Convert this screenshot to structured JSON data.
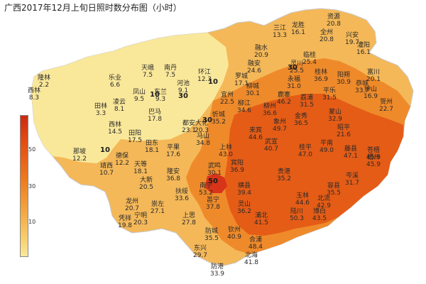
{
  "title": "广西2017年12月上旬日照时数分布图（小时）",
  "legend": {
    "unit": "",
    "ticks": [
      "50",
      "30",
      "10"
    ]
  },
  "colors": {
    "c1": "#fae89a",
    "c2": "#f7d070",
    "c3": "#f4b858",
    "c4": "#ef8a2a",
    "c5": "#e55c16",
    "c6": "#d8341a"
  },
  "contours": [
    "10",
    "10",
    "10",
    "30",
    "30",
    "30",
    "50"
  ],
  "stations": [
    {
      "name": "隆林",
      "value": "2.2"
    },
    {
      "name": "西林",
      "value": "8.3"
    },
    {
      "name": "乐业",
      "value": "6.6"
    },
    {
      "name": "天峨",
      "value": "7.5"
    },
    {
      "name": "南丹",
      "value": "7.5"
    },
    {
      "name": "环江",
      "value": "12.3"
    },
    {
      "name": "河池",
      "value": "9.1"
    },
    {
      "name": "凤山",
      "value": "9.5"
    },
    {
      "name": "东兰",
      "value": "9.3"
    },
    {
      "name": "凌云",
      "value": "8.1"
    },
    {
      "name": "田林",
      "value": "3.3"
    },
    {
      "name": "巴马",
      "value": "17.8"
    },
    {
      "name": "西林",
      "value": "14.5"
    },
    {
      "name": "田阳",
      "value": "17.5"
    },
    {
      "name": "田东",
      "value": "18.1"
    },
    {
      "name": "平果",
      "value": "17.6"
    },
    {
      "name": "德保",
      "value": "12.2"
    },
    {
      "name": "那坡",
      "value": "12.2"
    },
    {
      "name": "靖西",
      "value": "10.7"
    },
    {
      "name": "天等",
      "value": "18.1"
    },
    {
      "name": "大新",
      "value": "20.5"
    },
    {
      "name": "龙州",
      "value": "20.7"
    },
    {
      "name": "崇左",
      "value": "27.1"
    },
    {
      "name": "宁明",
      "value": "20.3"
    },
    {
      "name": "凭祥",
      "value": "19.8"
    },
    {
      "name": "隆安",
      "value": "36.8"
    },
    {
      "name": "扶绥",
      "value": "33.6"
    },
    {
      "name": "南宁",
      "value": "53.2"
    },
    {
      "name": "上思",
      "value": "27.8"
    },
    {
      "name": "防城",
      "value": "35.5"
    },
    {
      "name": "东兴",
      "value": "29.7"
    },
    {
      "name": "防港",
      "value": "33.9"
    },
    {
      "name": "钦州",
      "value": "40.9"
    },
    {
      "name": "北海",
      "value": "41.8"
    },
    {
      "name": "合浦",
      "value": "48.4"
    },
    {
      "name": "浦北",
      "value": "41.5"
    },
    {
      "name": "灵山",
      "value": "36.2"
    },
    {
      "name": "横县",
      "value": "39.4"
    },
    {
      "name": "邕宁",
      "value": "37.8"
    },
    {
      "name": "武鸣",
      "value": "30.1"
    },
    {
      "name": "马山",
      "value": "34.8"
    },
    {
      "name": "上林",
      "value": "43.0"
    },
    {
      "name": "宾阳",
      "value": "36.9"
    },
    {
      "name": "都安",
      "value": "23.1"
    },
    {
      "name": "大化",
      "value": "20.3"
    },
    {
      "name": "忻城",
      "value": "35.2"
    },
    {
      "name": "来宾",
      "value": "44.6"
    },
    {
      "name": "宜州",
      "value": "22.5"
    },
    {
      "name": "罗城",
      "value": "17.1"
    },
    {
      "name": "融水",
      "value": "20.9"
    },
    {
      "name": "融安",
      "value": "24.6"
    },
    {
      "name": "柳城",
      "value": "30.1"
    },
    {
      "name": "柳州",
      "value": "36.6"
    },
    {
      "name": "柳江",
      "value": "34.6"
    },
    {
      "name": "鹿寨",
      "value": "46.2"
    },
    {
      "name": "象州",
      "value": "49.7"
    },
    {
      "name": "武宣",
      "value": "40.7"
    },
    {
      "name": "金秀",
      "value": "36.5"
    },
    {
      "name": "桂平",
      "value": "47.0"
    },
    {
      "name": "平南",
      "value": "49.0"
    },
    {
      "name": "贵港",
      "value": "35.2"
    },
    {
      "name": "玉林",
      "value": "44.6"
    },
    {
      "name": "北流",
      "value": "42.9"
    },
    {
      "name": "陆川",
      "value": "50.3"
    },
    {
      "name": "博白",
      "value": "43.5"
    },
    {
      "name": "容县",
      "value": "35.5"
    },
    {
      "name": "岑溪",
      "value": "31.7"
    },
    {
      "name": "藤县",
      "value": "47.1"
    },
    {
      "name": "苍梧",
      "value": "45.9"
    },
    {
      "name": "梧州",
      "value": "45.9"
    },
    {
      "name": "三江",
      "value": "13.3"
    },
    {
      "name": "龙胜",
      "value": "16.1"
    },
    {
      "name": "资源",
      "value": "20.8"
    },
    {
      "name": "全州",
      "value": "20.8"
    },
    {
      "name": "兴安",
      "value": "19.7"
    },
    {
      "name": "灌阳",
      "value": "16.1"
    },
    {
      "name": "临桂",
      "value": "25.4"
    },
    {
      "name": "桂林",
      "value": "36.9"
    },
    {
      "name": "灵川",
      "value": "25.5"
    },
    {
      "name": "永福",
      "value": "31.0"
    },
    {
      "name": "阳朔",
      "value": "30.9"
    },
    {
      "name": "恭城",
      "value": "33.7"
    },
    {
      "name": "平乐",
      "value": "31.5"
    },
    {
      "name": "荔浦",
      "value": "31.5"
    },
    {
      "name": "蒙山",
      "value": "32.9"
    },
    {
      "name": "昭平",
      "value": "21.6"
    },
    {
      "name": "富川",
      "value": "20.1"
    },
    {
      "name": "钟山",
      "value": "16.9"
    },
    {
      "name": "贺州",
      "value": "22.7"
    }
  ]
}
